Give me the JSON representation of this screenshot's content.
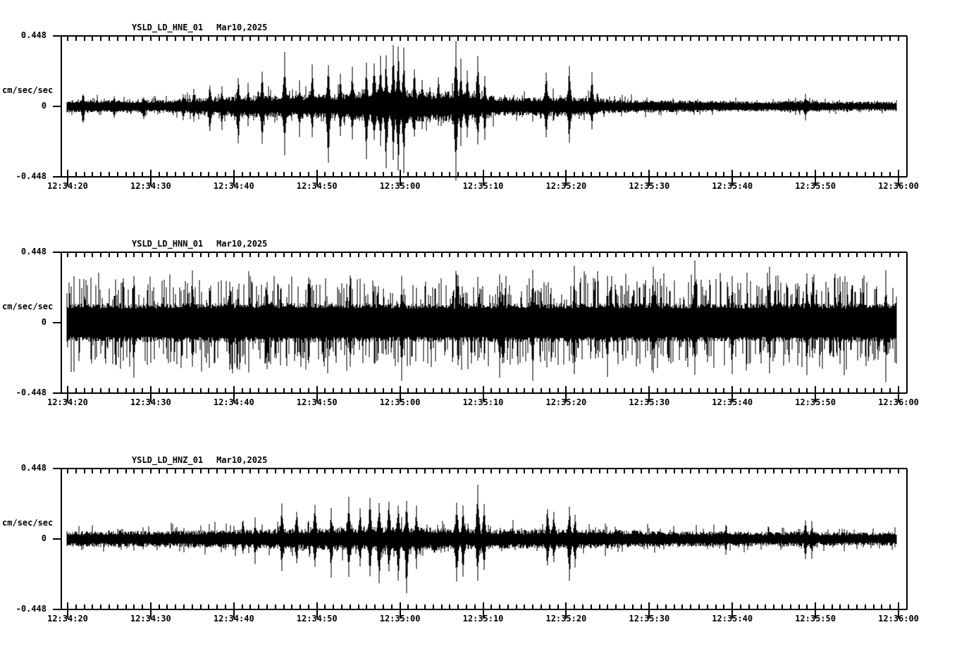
{
  "app": {
    "description": "Three-channel seismic strip chart (acceleration waveforms)",
    "background": "#ffffff",
    "foreground": "#000000"
  },
  "chart_data": [
    {
      "type": "line",
      "subtype": "seismogram-waveform",
      "title": "YSLD_LD_HNE_01",
      "date": "Mar10,2025",
      "ylabel": "cm/sec/sec",
      "units": "cm/sec/sec",
      "ylim": [
        -0.448,
        0.448
      ],
      "y_top_label": "0.448",
      "y_zero_label": "0",
      "y_bottom_label": "-0.448",
      "x_start": "12:34:20",
      "x_end": "12:36:00",
      "x_major_tick_seconds": 10,
      "x_minor_tick_seconds": 1,
      "x_tick_labels": [
        "12:34:20",
        "12:34:30",
        "12:34:40",
        "12:34:50",
        "12:35:00",
        "12:35:10",
        "12:35:20",
        "12:35:30",
        "12:35:40",
        "12:35:50",
        "12:36:00"
      ],
      "grid": false,
      "seed": 101,
      "noise_envelope": [
        [
          0,
          0.042
        ],
        [
          12,
          0.042
        ],
        [
          16,
          0.055
        ],
        [
          20,
          0.065
        ],
        [
          24,
          0.07
        ],
        [
          28,
          0.075
        ],
        [
          32,
          0.08
        ],
        [
          36,
          0.1
        ],
        [
          38,
          0.115
        ],
        [
          40,
          0.12
        ],
        [
          42,
          0.1
        ],
        [
          44,
          0.09
        ],
        [
          46,
          0.1
        ],
        [
          48,
          0.09
        ],
        [
          50,
          0.08
        ],
        [
          52,
          0.065
        ],
        [
          55,
          0.06
        ],
        [
          58,
          0.065
        ],
        [
          61,
          0.06
        ],
        [
          63,
          0.055
        ],
        [
          66,
          0.045
        ],
        [
          70,
          0.04
        ],
        [
          75,
          0.038
        ],
        [
          80,
          0.035
        ],
        [
          85,
          0.032
        ],
        [
          88,
          0.04
        ],
        [
          90,
          0.035
        ],
        [
          92,
          0.031
        ],
        [
          100,
          0.03
        ]
      ],
      "spikes": [
        [
          1.9,
          0.09,
          0.125
        ],
        [
          5.6,
          0.07,
          0.078
        ],
        [
          9.2,
          0.065,
          0.09
        ],
        [
          13.9,
          0.082,
          0.095
        ],
        [
          15.2,
          0.1,
          0.086
        ],
        [
          17.1,
          0.15,
          0.18
        ],
        [
          18.6,
          0.115,
          0.135
        ],
        [
          20.5,
          0.19,
          0.25
        ],
        [
          21.7,
          0.135,
          0.115
        ],
        [
          23.4,
          0.21,
          0.225
        ],
        [
          26.1,
          0.315,
          0.285
        ],
        [
          27.9,
          0.145,
          0.17
        ],
        [
          29.4,
          0.245,
          0.18
        ],
        [
          31.4,
          0.29,
          0.395
        ],
        [
          32.8,
          0.2,
          0.18
        ],
        [
          34.3,
          0.26,
          0.215
        ],
        [
          36.0,
          0.29,
          0.35
        ],
        [
          36.9,
          0.315,
          0.245
        ],
        [
          37.7,
          0.345,
          0.27
        ],
        [
          38.3,
          0.325,
          0.395
        ],
        [
          39.2,
          0.36,
          0.315
        ],
        [
          39.8,
          0.4,
          0.43
        ],
        [
          40.5,
          0.335,
          0.38
        ],
        [
          41.7,
          0.245,
          0.2
        ],
        [
          42.7,
          0.18,
          0.155
        ],
        [
          43.6,
          0.14,
          0.12
        ],
        [
          44.6,
          0.2,
          0.135
        ],
        [
          46.7,
          0.42,
          0.48
        ],
        [
          47.3,
          0.27,
          0.225
        ],
        [
          48.1,
          0.22,
          0.19
        ],
        [
          49.4,
          0.325,
          0.245
        ],
        [
          50.2,
          0.18,
          0.2
        ],
        [
          57.6,
          0.235,
          0.215
        ],
        [
          60.4,
          0.26,
          0.235
        ],
        [
          63.1,
          0.2,
          0.135
        ],
        [
          88.8,
          0.08,
          0.09
        ]
      ],
      "noise_texture": {
        "prob": 0.1,
        "min": 1.25,
        "max": 1.9,
        "band": 0.5
      }
    },
    {
      "type": "line",
      "subtype": "seismogram-waveform",
      "title": "YSLD_LD_HNN_01",
      "date": "Mar10,2025",
      "ylabel": "cm/sec/sec",
      "units": "cm/sec/sec",
      "ylim": [
        -0.448,
        0.448
      ],
      "y_top_label": "0.448",
      "y_zero_label": "0",
      "y_bottom_label": "-0.448",
      "x_start": "12:34:20",
      "x_end": "12:36:00",
      "x_major_tick_seconds": 10,
      "x_minor_tick_seconds": 1,
      "x_tick_labels": [
        "12:34:20",
        "12:34:30",
        "12:34:40",
        "12:34:50",
        "12:35:00",
        "12:35:10",
        "12:35:20",
        "12:35:30",
        "12:35:40",
        "12:35:50",
        "12:36:00"
      ],
      "grid": false,
      "seed": 202,
      "noise_envelope": [
        [
          0,
          0.122
        ],
        [
          20,
          0.128
        ],
        [
          40,
          0.124
        ],
        [
          60,
          0.127
        ],
        [
          80,
          0.123
        ],
        [
          100,
          0.126
        ]
      ],
      "spikes": [
        [
          8,
          0.28,
          0.33
        ],
        [
          15,
          0.32,
          0.27
        ],
        [
          19.5,
          0.3,
          0.345
        ],
        [
          24,
          0.27,
          0.31
        ],
        [
          29,
          0.335,
          0.3
        ],
        [
          34,
          0.29,
          0.27
        ],
        [
          40.2,
          0.3,
          0.37
        ],
        [
          47,
          0.31,
          0.28
        ],
        [
          52,
          0.28,
          0.32
        ],
        [
          56,
          0.3,
          0.33
        ],
        [
          61,
          0.32,
          0.29
        ],
        [
          65,
          0.28,
          0.325
        ],
        [
          70.5,
          0.31,
          0.28
        ],
        [
          75.5,
          0.36,
          0.3
        ],
        [
          80,
          0.3,
          0.33
        ],
        [
          84.5,
          0.33,
          0.3
        ],
        [
          89,
          0.3,
          0.32
        ],
        [
          93,
          0.31,
          0.28
        ],
        [
          98.5,
          0.3,
          0.34
        ]
      ],
      "noise_texture": {
        "prob": 0.3,
        "min": 1.35,
        "max": 2.7,
        "band": 0.72
      }
    },
    {
      "type": "line",
      "subtype": "seismogram-waveform",
      "title": "YSLD_LD_HNZ_01",
      "date": "Mar10,2025",
      "ylabel": "cm/sec/sec",
      "units": "cm/sec/sec",
      "ylim": [
        -0.448,
        0.448
      ],
      "y_top_label": "0.448",
      "y_zero_label": "0",
      "y_bottom_label": "-0.448",
      "x_start": "12:34:20",
      "x_end": "12:36:00",
      "x_major_tick_seconds": 10,
      "x_minor_tick_seconds": 1,
      "x_tick_labels": [
        "12:34:20",
        "12:34:30",
        "12:34:40",
        "12:34:50",
        "12:35:00",
        "12:35:10",
        "12:35:20",
        "12:35:30",
        "12:35:40",
        "12:35:50",
        "12:36:00"
      ],
      "grid": false,
      "seed": 303,
      "noise_envelope": [
        [
          0,
          0.05
        ],
        [
          10,
          0.052
        ],
        [
          15,
          0.055
        ],
        [
          20,
          0.06
        ],
        [
          25,
          0.065
        ],
        [
          30,
          0.07
        ],
        [
          35,
          0.075
        ],
        [
          40,
          0.08
        ],
        [
          44,
          0.075
        ],
        [
          48,
          0.07
        ],
        [
          50,
          0.065
        ],
        [
          55,
          0.06
        ],
        [
          60,
          0.065
        ],
        [
          64,
          0.062
        ],
        [
          68,
          0.055
        ],
        [
          72,
          0.05
        ],
        [
          80,
          0.05
        ],
        [
          84,
          0.046
        ],
        [
          88,
          0.05
        ],
        [
          90,
          0.046
        ],
        [
          95,
          0.043
        ],
        [
          100,
          0.042
        ]
      ],
      "spikes": [
        [
          21.1,
          0.135,
          0.11
        ],
        [
          22.6,
          0.125,
          0.145
        ],
        [
          25.8,
          0.2,
          0.18
        ],
        [
          27.6,
          0.19,
          0.17
        ],
        [
          29.8,
          0.245,
          0.2
        ],
        [
          31.7,
          0.18,
          0.225
        ],
        [
          33.8,
          0.26,
          0.235
        ],
        [
          35.2,
          0.2,
          0.18
        ],
        [
          36.4,
          0.27,
          0.245
        ],
        [
          37.5,
          0.235,
          0.29
        ],
        [
          38.7,
          0.26,
          0.225
        ],
        [
          39.8,
          0.225,
          0.28
        ],
        [
          40.8,
          0.235,
          0.335
        ],
        [
          42.0,
          0.2,
          0.18
        ],
        [
          46.8,
          0.26,
          0.305
        ],
        [
          47.6,
          0.2,
          0.225
        ],
        [
          49.4,
          0.335,
          0.26
        ],
        [
          50.1,
          0.225,
          0.2
        ],
        [
          57.8,
          0.215,
          0.19
        ],
        [
          58.5,
          0.18,
          0.155
        ],
        [
          60.4,
          0.2,
          0.26
        ],
        [
          61.1,
          0.155,
          0.18
        ],
        [
          79.2,
          0.09,
          0.1
        ],
        [
          88.8,
          0.125,
          0.135
        ],
        [
          89.6,
          0.1,
          0.11
        ]
      ],
      "noise_texture": {
        "prob": 0.12,
        "min": 1.25,
        "max": 2.0,
        "band": 0.5
      }
    }
  ]
}
